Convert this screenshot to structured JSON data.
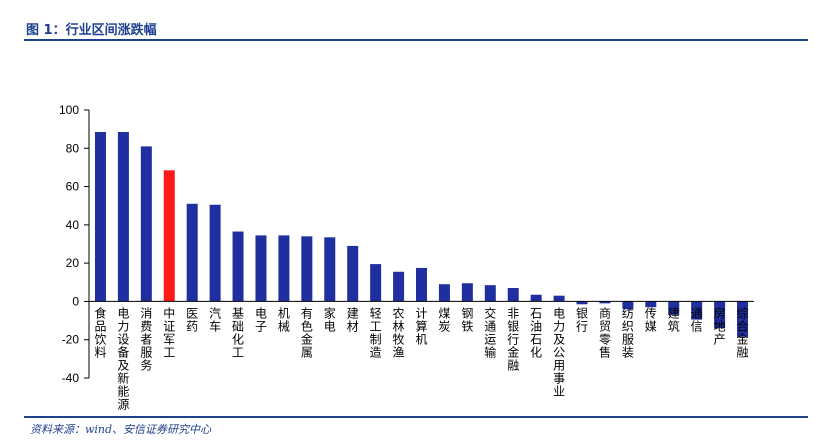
{
  "figure": {
    "title": "图 1：行业区间涨跌幅",
    "source": "资料来源：wind、安信证券研究中心"
  },
  "colors": {
    "bar": "#1f2f9f",
    "highlight": "#ff1a1a",
    "header": "#1f3f8f",
    "axis": "#000000"
  },
  "chart_data": {
    "type": "bar",
    "title": "",
    "xlabel": "",
    "ylabel": "",
    "ylim": [
      -40,
      100
    ],
    "yticks": [
      -40,
      -20,
      0,
      20,
      40,
      60,
      80,
      100
    ],
    "grid": false,
    "legend": "none",
    "highlight_category": "中证军工",
    "categories": [
      "食品饮料",
      "电力设备及新能源",
      "消费者服务",
      "中证军工",
      "医药",
      "汽车",
      "基础化工",
      "电子",
      "机械",
      "有色金属",
      "家电",
      "建材",
      "轻工制造",
      "农林牧渔",
      "计算机",
      "煤炭",
      "钢铁",
      "交通运输",
      "非银行金融",
      "石油石化",
      "电力及公用事业",
      "银行",
      "商贸零售",
      "纺织服装",
      "传媒",
      "建筑",
      "通信",
      "房地产",
      "综合金融"
    ],
    "values": [
      88.5,
      88.5,
      81,
      68.5,
      51,
      50.5,
      36.5,
      34.5,
      34.5,
      34,
      33.5,
      29,
      19.5,
      15.5,
      17.5,
      9,
      9.5,
      8.5,
      7,
      3.5,
      3,
      -1.5,
      -1,
      -4,
      -3,
      -7,
      -9.5,
      -14,
      -18.5
    ]
  }
}
